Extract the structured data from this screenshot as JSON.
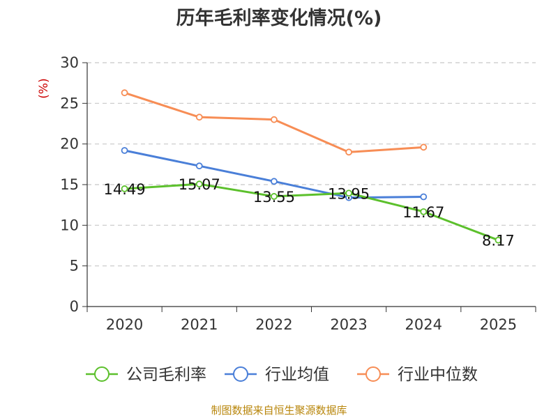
{
  "chart_data": {
    "type": "line",
    "title": "历年毛利率变化情况(%)",
    "ylabel": "(%)",
    "xlabel": "",
    "categories": [
      "2020",
      "2021",
      "2022",
      "2023",
      "2024",
      "2025"
    ],
    "ylim": [
      0,
      30
    ],
    "yticks": [
      0,
      5,
      10,
      15,
      20,
      25,
      30
    ],
    "grid": true,
    "legend_position": "bottom",
    "series": [
      {
        "name": "公司毛利率",
        "color": "#5cc02c",
        "values": [
          14.49,
          15.07,
          13.55,
          13.95,
          11.67,
          8.17
        ],
        "labels": [
          "14.49",
          "15.07",
          "13.55",
          "13.95",
          "11.67",
          "8.17"
        ]
      },
      {
        "name": "行业均值",
        "color": "#4a7fd8",
        "values": [
          19.2,
          17.3,
          15.4,
          13.4,
          13.5,
          null
        ]
      },
      {
        "name": "行业中位数",
        "color": "#f78d55",
        "values": [
          26.3,
          23.3,
          23.0,
          19.0,
          19.6,
          null
        ]
      }
    ]
  },
  "unit_color": "#cc0000",
  "source_note": "制图数据来自恒生聚源数据库",
  "source_color": "#b8860b"
}
